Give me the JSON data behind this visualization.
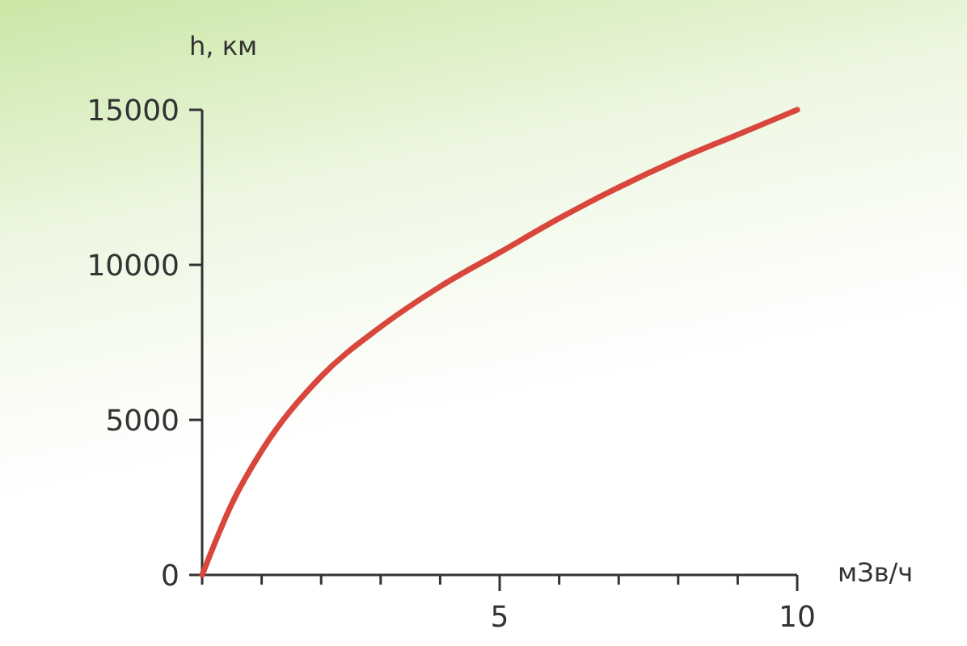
{
  "chart_data": {
    "type": "line",
    "ylabel": "h, км",
    "xlabel": "мЗв/ч",
    "x": [
      0,
      0.5,
      1,
      2,
      3,
      4,
      5,
      6,
      7,
      8,
      9,
      10
    ],
    "series": [
      {
        "color": "#d9463c",
        "values": [
          0,
          2300,
          4000,
          6400,
          8000,
          9300,
          10400,
          11500,
          12500,
          13400,
          14200,
          15000
        ]
      }
    ],
    "xlim": [
      0,
      10
    ],
    "xticks": [
      {
        "value": 0,
        "label": null
      },
      {
        "value": 1,
        "label": null
      },
      {
        "value": 2,
        "label": null
      },
      {
        "value": 3,
        "label": null
      },
      {
        "value": 4,
        "label": null
      },
      5,
      {
        "value": 6,
        "label": null
      },
      {
        "value": 7,
        "label": null
      },
      {
        "value": 8,
        "label": null
      },
      {
        "value": 9,
        "label": null
      },
      10
    ],
    "ylim": [
      0,
      15000
    ],
    "yticks": [
      0,
      5000,
      10000,
      15000
    ],
    "grid": false,
    "marker": "none",
    "line_style": "solid"
  }
}
